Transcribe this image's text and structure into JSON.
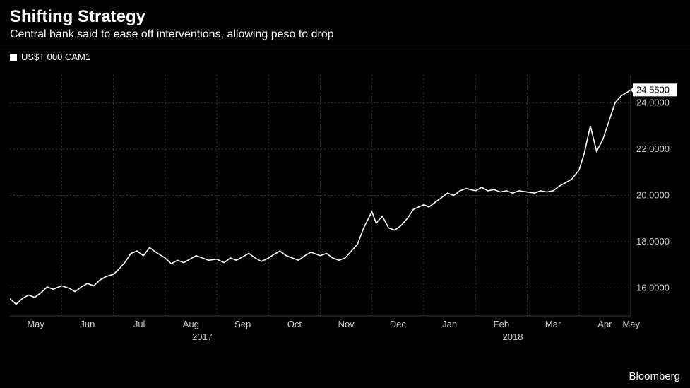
{
  "title": "Shifting Strategy",
  "subtitle": "Central bank said to ease off interventions, allowing peso to drop",
  "legend": {
    "series_label": "US$T 000 CAM1"
  },
  "attribution": "Bloomberg",
  "chart": {
    "type": "line",
    "background_color": "#000000",
    "grid_color": "#3a3a3a",
    "line_color": "#ffffff",
    "line_width": 1.6,
    "ylim": [
      14.8,
      25.2
    ],
    "yticks": [
      16.0,
      18.0,
      20.0,
      22.0,
      24.0
    ],
    "ytick_labels": [
      "16.0000",
      "18.0000",
      "20.0000",
      "22.0000",
      "24.0000"
    ],
    "last_value": 24.55,
    "last_value_label": "24.5500",
    "x_months": [
      "May",
      "Jun",
      "Jul",
      "Aug",
      "Sep",
      "Oct",
      "Nov",
      "Dec",
      "Jan",
      "Feb",
      "Mar",
      "Apr",
      "May"
    ],
    "x_years": [
      "2017",
      "2018"
    ],
    "year_positions": [
      0.31,
      0.81
    ],
    "series": [
      {
        "x": 0.0,
        "y": 15.55
      },
      {
        "x": 0.01,
        "y": 15.3
      },
      {
        "x": 0.02,
        "y": 15.55
      },
      {
        "x": 0.03,
        "y": 15.7
      },
      {
        "x": 0.04,
        "y": 15.6
      },
      {
        "x": 0.05,
        "y": 15.8
      },
      {
        "x": 0.06,
        "y": 16.05
      },
      {
        "x": 0.07,
        "y": 15.95
      },
      {
        "x": 0.083,
        "y": 16.1
      },
      {
        "x": 0.095,
        "y": 16.0
      },
      {
        "x": 0.105,
        "y": 15.85
      },
      {
        "x": 0.115,
        "y": 16.05
      },
      {
        "x": 0.125,
        "y": 16.2
      },
      {
        "x": 0.135,
        "y": 16.1
      },
      {
        "x": 0.145,
        "y": 16.35
      },
      {
        "x": 0.155,
        "y": 16.5
      },
      {
        "x": 0.167,
        "y": 16.6
      },
      {
        "x": 0.175,
        "y": 16.8
      },
      {
        "x": 0.185,
        "y": 17.1
      },
      {
        "x": 0.195,
        "y": 17.5
      },
      {
        "x": 0.205,
        "y": 17.6
      },
      {
        "x": 0.215,
        "y": 17.4
      },
      {
        "x": 0.225,
        "y": 17.75
      },
      {
        "x": 0.235,
        "y": 17.55
      },
      {
        "x": 0.25,
        "y": 17.3
      },
      {
        "x": 0.26,
        "y": 17.05
      },
      {
        "x": 0.27,
        "y": 17.2
      },
      {
        "x": 0.28,
        "y": 17.1
      },
      {
        "x": 0.29,
        "y": 17.25
      },
      {
        "x": 0.3,
        "y": 17.4
      },
      {
        "x": 0.31,
        "y": 17.3
      },
      {
        "x": 0.32,
        "y": 17.2
      },
      {
        "x": 0.333,
        "y": 17.25
      },
      {
        "x": 0.345,
        "y": 17.1
      },
      {
        "x": 0.355,
        "y": 17.3
      },
      {
        "x": 0.365,
        "y": 17.2
      },
      {
        "x": 0.375,
        "y": 17.35
      },
      {
        "x": 0.385,
        "y": 17.5
      },
      {
        "x": 0.395,
        "y": 17.3
      },
      {
        "x": 0.405,
        "y": 17.15
      },
      {
        "x": 0.417,
        "y": 17.3
      },
      {
        "x": 0.425,
        "y": 17.45
      },
      {
        "x": 0.435,
        "y": 17.6
      },
      {
        "x": 0.445,
        "y": 17.4
      },
      {
        "x": 0.455,
        "y": 17.3
      },
      {
        "x": 0.465,
        "y": 17.2
      },
      {
        "x": 0.475,
        "y": 17.4
      },
      {
        "x": 0.485,
        "y": 17.55
      },
      {
        "x": 0.5,
        "y": 17.4
      },
      {
        "x": 0.51,
        "y": 17.5
      },
      {
        "x": 0.52,
        "y": 17.3
      },
      {
        "x": 0.53,
        "y": 17.2
      },
      {
        "x": 0.54,
        "y": 17.3
      },
      {
        "x": 0.55,
        "y": 17.6
      },
      {
        "x": 0.56,
        "y": 17.9
      },
      {
        "x": 0.57,
        "y": 18.6
      },
      {
        "x": 0.583,
        "y": 19.3
      },
      {
        "x": 0.59,
        "y": 18.8
      },
      {
        "x": 0.6,
        "y": 19.1
      },
      {
        "x": 0.61,
        "y": 18.6
      },
      {
        "x": 0.62,
        "y": 18.5
      },
      {
        "x": 0.63,
        "y": 18.7
      },
      {
        "x": 0.64,
        "y": 19.0
      },
      {
        "x": 0.65,
        "y": 19.4
      },
      {
        "x": 0.667,
        "y": 19.6
      },
      {
        "x": 0.675,
        "y": 19.5
      },
      {
        "x": 0.685,
        "y": 19.7
      },
      {
        "x": 0.695,
        "y": 19.9
      },
      {
        "x": 0.705,
        "y": 20.1
      },
      {
        "x": 0.715,
        "y": 20.0
      },
      {
        "x": 0.725,
        "y": 20.2
      },
      {
        "x": 0.735,
        "y": 20.3
      },
      {
        "x": 0.75,
        "y": 20.2
      },
      {
        "x": 0.76,
        "y": 20.35
      },
      {
        "x": 0.77,
        "y": 20.2
      },
      {
        "x": 0.78,
        "y": 20.25
      },
      {
        "x": 0.79,
        "y": 20.15
      },
      {
        "x": 0.8,
        "y": 20.2
      },
      {
        "x": 0.81,
        "y": 20.1
      },
      {
        "x": 0.82,
        "y": 20.2
      },
      {
        "x": 0.833,
        "y": 20.15
      },
      {
        "x": 0.845,
        "y": 20.1
      },
      {
        "x": 0.855,
        "y": 20.2
      },
      {
        "x": 0.865,
        "y": 20.15
      },
      {
        "x": 0.875,
        "y": 20.2
      },
      {
        "x": 0.885,
        "y": 20.4
      },
      {
        "x": 0.895,
        "y": 20.55
      },
      {
        "x": 0.905,
        "y": 20.7
      },
      {
        "x": 0.917,
        "y": 21.1
      },
      {
        "x": 0.925,
        "y": 21.8
      },
      {
        "x": 0.935,
        "y": 23.0
      },
      {
        "x": 0.945,
        "y": 21.9
      },
      {
        "x": 0.955,
        "y": 22.4
      },
      {
        "x": 0.965,
        "y": 23.2
      },
      {
        "x": 0.975,
        "y": 24.0
      },
      {
        "x": 0.985,
        "y": 24.3
      },
      {
        "x": 1.0,
        "y": 24.55
      }
    ]
  }
}
